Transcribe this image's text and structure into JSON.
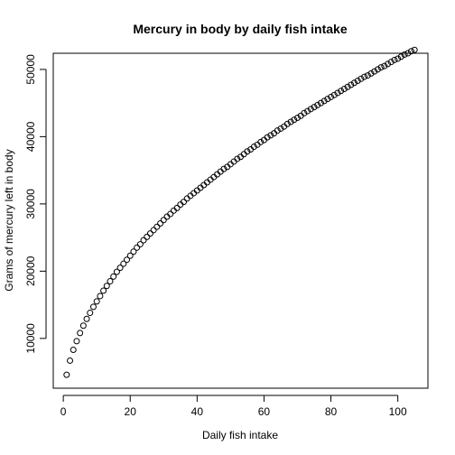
{
  "chart_data": {
    "type": "scatter",
    "title": "Mercury in body by daily fish intake",
    "xlabel": "Daily fish intake",
    "ylabel": "Grams of mercury left in body",
    "xlim": [
      -3,
      109
    ],
    "ylim": [
      2600,
      52400
    ],
    "x_ticks": [
      0,
      20,
      40,
      60,
      80,
      100
    ],
    "x_tick_labels": [
      "0",
      "20",
      "40",
      "60",
      "80",
      "100"
    ],
    "y_ticks": [
      10000,
      20000,
      30000,
      40000,
      50000
    ],
    "y_tick_labels": [
      "10000",
      "20000",
      "30000",
      "40000",
      "50000"
    ],
    "grid": false,
    "legend": "none",
    "marker": "open-circle",
    "colors": {
      "marker": "#000000",
      "frame": "#000000",
      "background": "#ffffff"
    },
    "x": [
      1,
      2,
      3,
      4,
      5,
      6,
      7,
      8,
      9,
      10,
      11,
      12,
      13,
      14,
      15,
      16,
      17,
      18,
      19,
      20,
      21,
      22,
      23,
      24,
      25,
      26,
      27,
      28,
      29,
      30,
      31,
      32,
      33,
      34,
      35,
      36,
      37,
      38,
      39,
      40,
      41,
      42,
      43,
      44,
      45,
      46,
      47,
      48,
      49,
      50,
      51,
      52,
      53,
      54,
      55,
      56,
      57,
      58,
      59,
      60,
      61,
      62,
      63,
      64,
      65,
      66,
      67,
      68,
      69,
      70,
      71,
      72,
      73,
      74,
      75,
      76,
      77,
      78,
      79,
      80,
      81,
      82,
      83,
      84,
      85,
      86,
      87,
      88,
      89,
      90,
      91,
      92,
      93,
      94,
      95,
      96,
      97,
      98,
      99,
      100,
      101,
      102,
      103,
      104,
      105
    ],
    "y": [
      4600,
      6700,
      8300,
      9600,
      10800,
      11900,
      12900,
      13800,
      14700,
      15500,
      16300,
      17100,
      17800,
      18500,
      19200,
      19900,
      20500,
      21100,
      21700,
      22300,
      22900,
      23500,
      24000,
      24600,
      25100,
      25600,
      26100,
      26600,
      27100,
      27600,
      28100,
      28500,
      29000,
      29400,
      29900,
      30300,
      30800,
      31200,
      31600,
      32000,
      32400,
      32800,
      33200,
      33600,
      34000,
      34400,
      34800,
      35200,
      35500,
      35900,
      36300,
      36700,
      37000,
      37400,
      37800,
      38100,
      38500,
      38800,
      39200,
      39500,
      39900,
      40200,
      40500,
      40900,
      41200,
      41500,
      41900,
      42200,
      42500,
      42800,
      43100,
      43500,
      43800,
      44100,
      44400,
      44700,
      45000,
      45300,
      45600,
      45900,
      46200,
      46500,
      46800,
      47100,
      47400,
      47700,
      48000,
      48300,
      48600,
      48900,
      49100,
      49400,
      49700,
      50000,
      50300,
      50500,
      50800,
      51100,
      51400,
      51600,
      51900,
      52200,
      52400,
      52700,
      52900
    ]
  }
}
